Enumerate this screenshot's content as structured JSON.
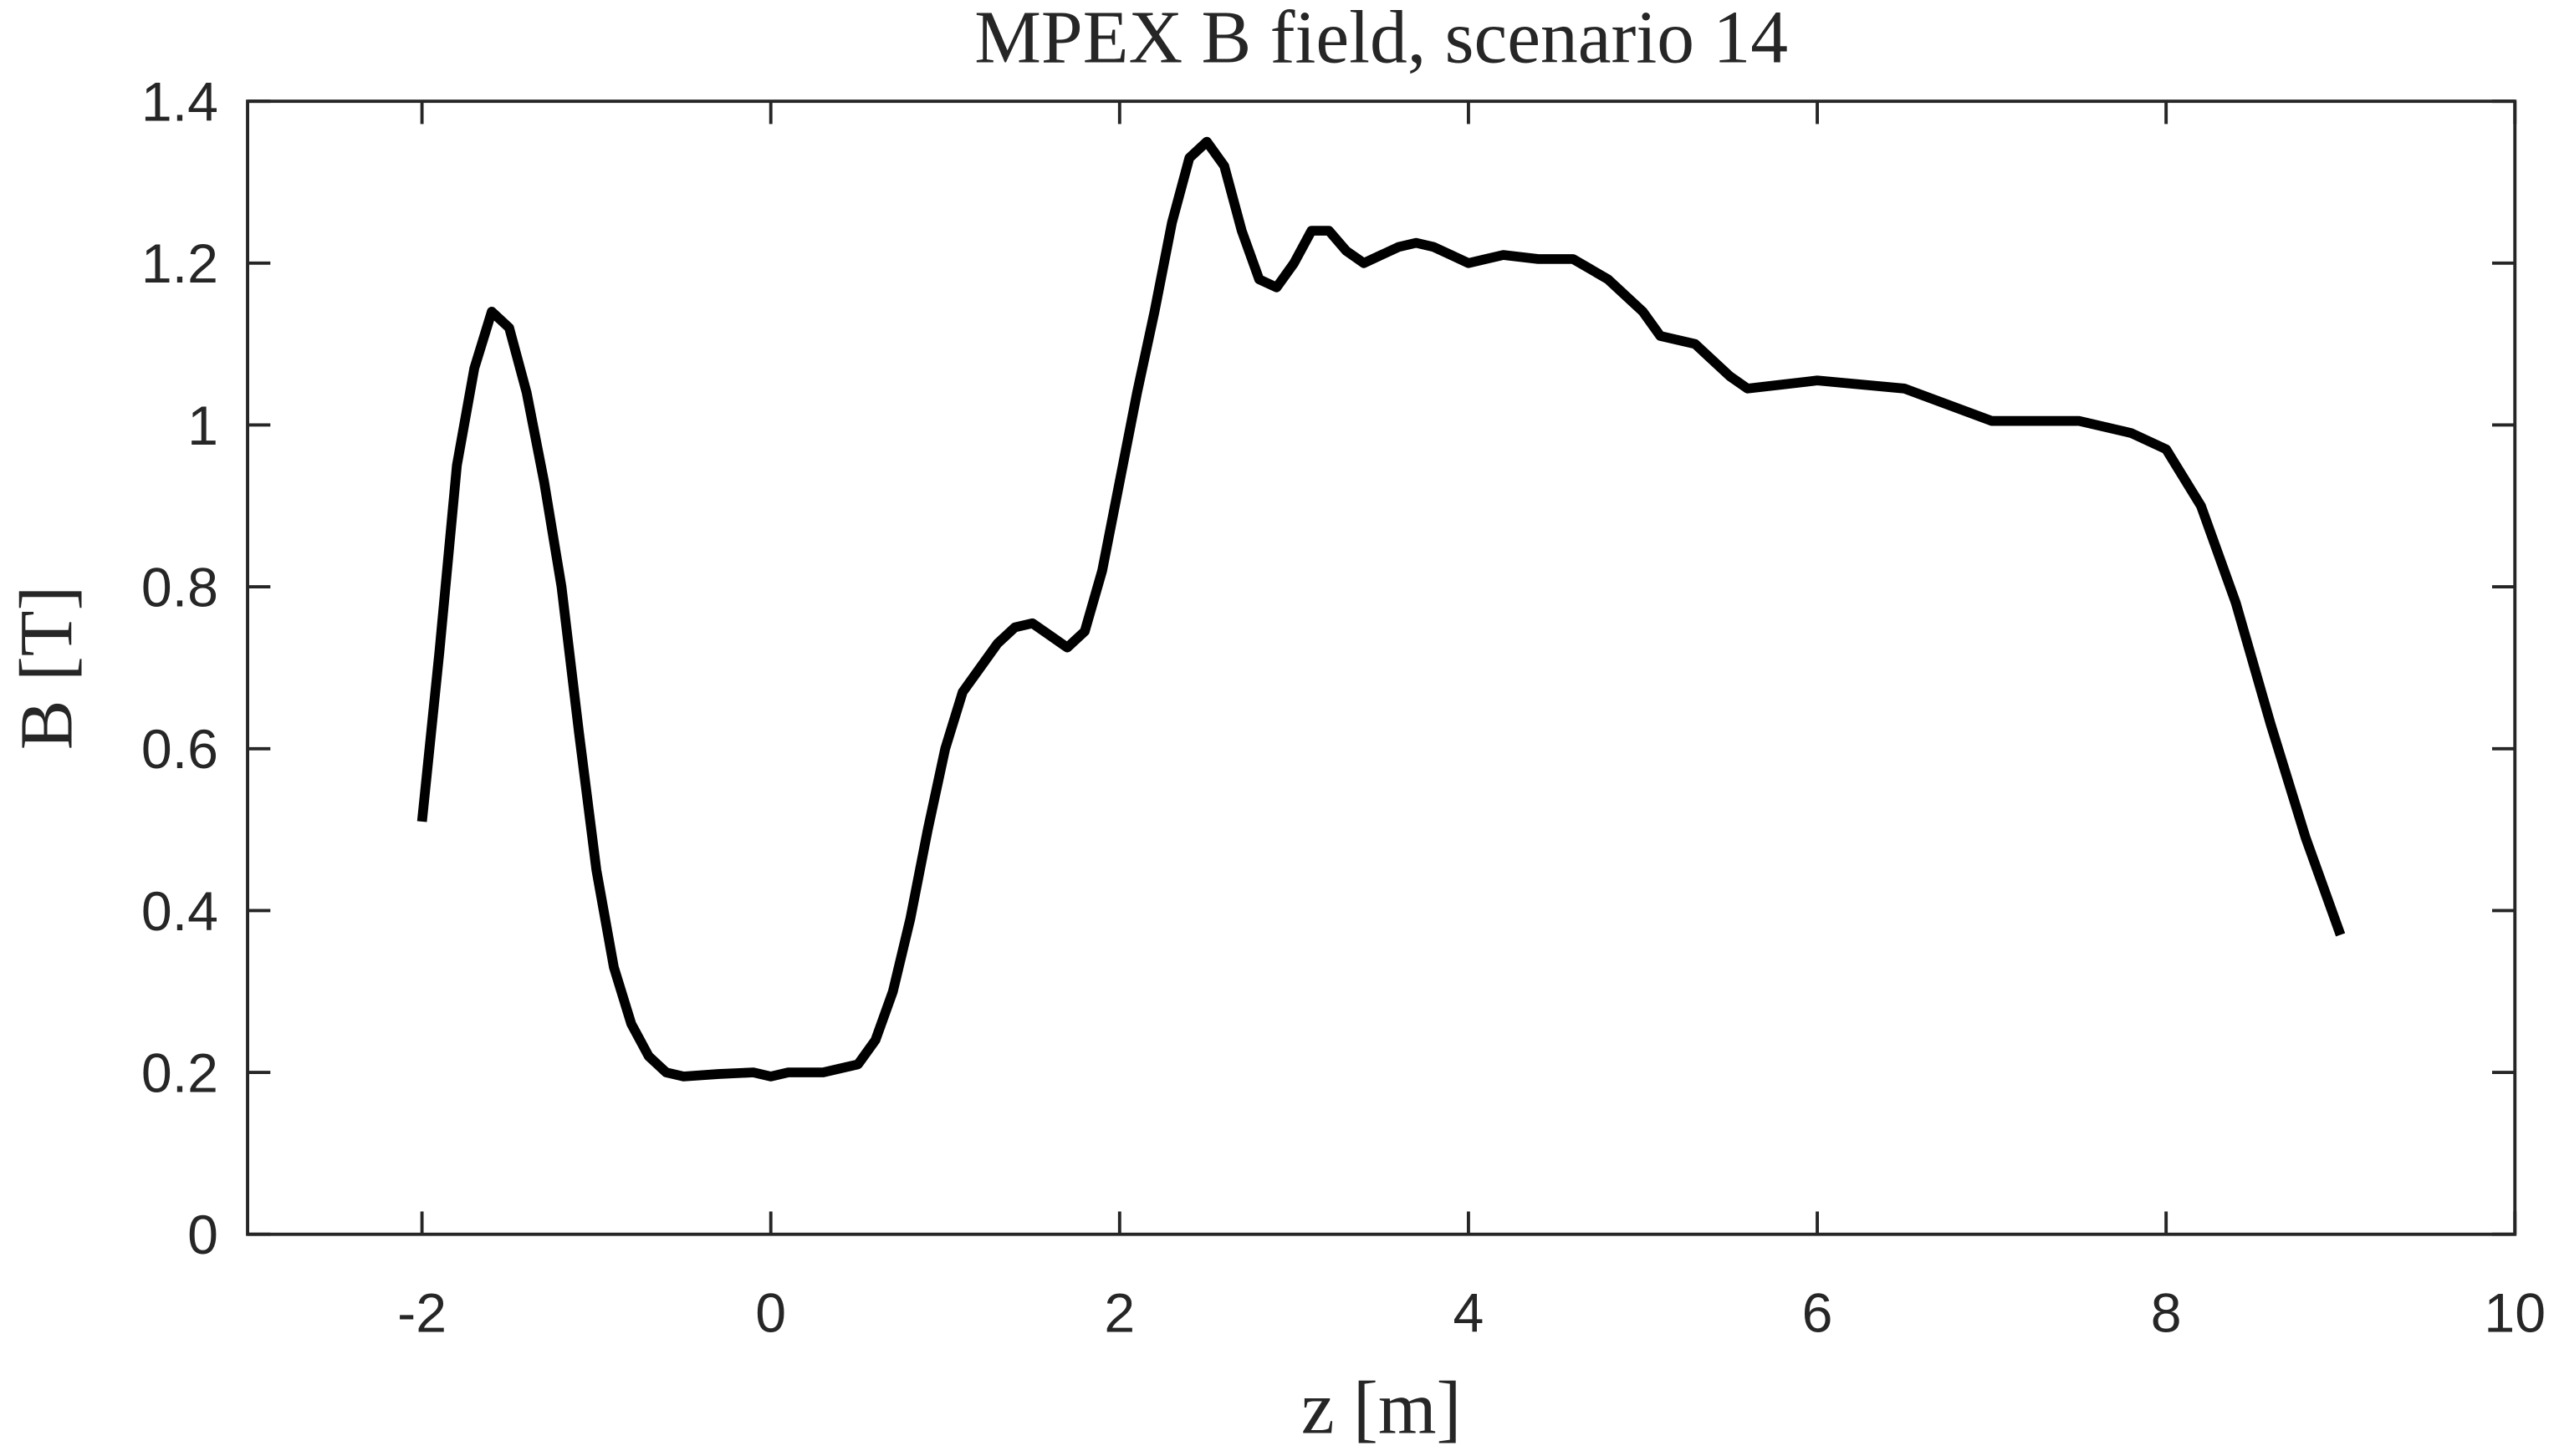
{
  "chart_data": {
    "type": "line",
    "title": "MPEX B field, scenario 14",
    "xlabel": "z [m]",
    "ylabel": "B [T]",
    "x": [
      -2.0,
      -1.9,
      -1.8,
      -1.7,
      -1.6,
      -1.5,
      -1.4,
      -1.3,
      -1.2,
      -1.1,
      -1.0,
      -0.9,
      -0.8,
      -0.7,
      -0.6,
      -0.5,
      -0.3,
      -0.1,
      0,
      0.1,
      0.3,
      0.5,
      0.6,
      0.7,
      0.8,
      0.9,
      1.0,
      1.1,
      1.2,
      1.3,
      1.4,
      1.5,
      1.6,
      1.7,
      1.8,
      1.9,
      2.0,
      2.1,
      2.2,
      2.3,
      2.4,
      2.5,
      2.6,
      2.7,
      2.8,
      2.9,
      3.0,
      3.1,
      3.2,
      3.3,
      3.4,
      3.5,
      3.6,
      3.7,
      3.8,
      3.9,
      4.0,
      4.2,
      4.4,
      4.6,
      4.8,
      5.0,
      5.1,
      5.3,
      5.5,
      5.6,
      5.8,
      6.0,
      6.5,
      7.0,
      7.5,
      7.8,
      8.0,
      8.2,
      8.4,
      8.6,
      8.8,
      9.0
    ],
    "series": [
      {
        "color": "#000000",
        "values": [
          0.51,
          0.72,
          0.95,
          1.07,
          1.14,
          1.12,
          1.04,
          0.93,
          0.8,
          0.62,
          0.45,
          0.33,
          0.26,
          0.22,
          0.2,
          0.195,
          0.198,
          0.2,
          0.195,
          0.2,
          0.2,
          0.21,
          0.24,
          0.3,
          0.39,
          0.5,
          0.6,
          0.67,
          0.7,
          0.73,
          0.75,
          0.755,
          0.74,
          0.725,
          0.745,
          0.82,
          0.93,
          1.04,
          1.14,
          1.25,
          1.33,
          1.35,
          1.32,
          1.24,
          1.18,
          1.17,
          1.2,
          1.24,
          1.24,
          1.215,
          1.2,
          1.21,
          1.22,
          1.225,
          1.22,
          1.21,
          1.2,
          1.21,
          1.205,
          1.205,
          1.18,
          1.14,
          1.11,
          1.1,
          1.06,
          1.045,
          1.05,
          1.055,
          1.045,
          1.005,
          1.005,
          0.99,
          0.97,
          0.9,
          0.78,
          0.63,
          0.49,
          0.37
        ]
      }
    ],
    "xlim": [
      -3,
      10
    ],
    "xticks": [
      -2,
      0,
      2,
      4,
      6,
      8,
      10
    ],
    "ylim": [
      0,
      1.4
    ],
    "yticks": [
      0,
      0.2,
      0.4,
      0.6,
      0.8,
      1,
      1.2,
      1.4
    ],
    "grid": false
  }
}
